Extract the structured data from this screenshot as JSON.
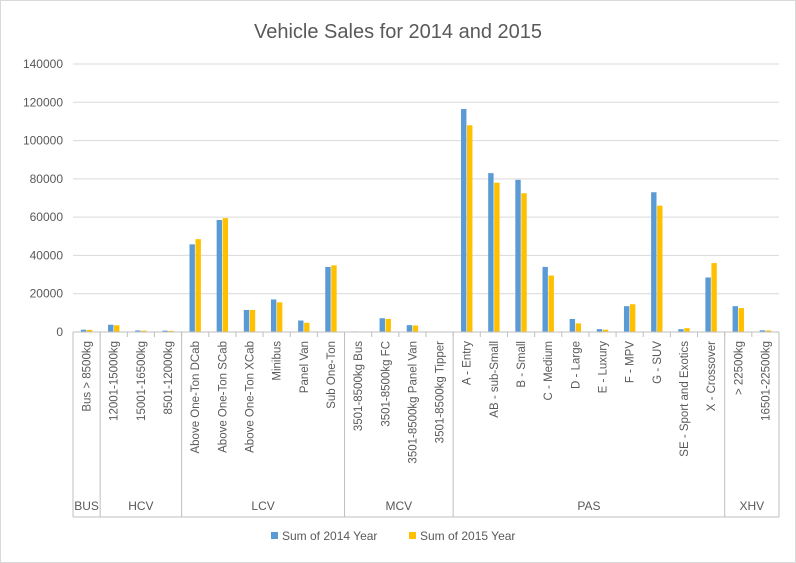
{
  "chart_data": {
    "type": "bar",
    "title": "Vehicle Sales for 2014 and 2015",
    "ylim": [
      0,
      140000
    ],
    "yticks": [
      0,
      20000,
      40000,
      60000,
      80000,
      100000,
      120000,
      140000
    ],
    "grid": true,
    "legend_position": "bottom",
    "groups": [
      {
        "name": "BUS",
        "count": 1
      },
      {
        "name": "HCV",
        "count": 3
      },
      {
        "name": "LCV",
        "count": 6
      },
      {
        "name": "MCV",
        "count": 4
      },
      {
        "name": "PAS",
        "count": 10
      },
      {
        "name": "XHV",
        "count": 2
      }
    ],
    "categories": [
      "Bus > 8500kg",
      "12001-15000kg",
      "15001-16500kg",
      "8501-12000kg",
      "Above One-Ton DCab",
      "Above One-Ton SCab",
      "Above One-Ton XCab",
      "Minibus",
      "Panel Van",
      "Sub One-Ton",
      "3501-8500kg Bus",
      "3501-8500kg FC",
      "3501-8500kg Panel Van",
      "3501-8500kg Tipper",
      "A - Entry",
      "AB - sub-Small",
      "B - Small",
      "C - Medium",
      "D - Large",
      "E - Luxury",
      "F - MPV",
      "G - SUV",
      "SE - Sport and Exotics",
      "X - Crossover",
      "> 22500kg",
      "16501-22500kg"
    ],
    "series": [
      {
        "name": "Sum of 2014 Year",
        "color": "#5b9bd5",
        "values": [
          1200,
          3800,
          800,
          700,
          45800,
          58500,
          11500,
          17000,
          6000,
          34000,
          300,
          7200,
          3600,
          200,
          116500,
          83000,
          79500,
          34000,
          6800,
          1500,
          13500,
          73000,
          1500,
          28500,
          13500,
          900
        ]
      },
      {
        "name": "Sum of 2015 Year",
        "color": "#ffc000",
        "values": [
          1100,
          3500,
          700,
          600,
          48500,
          59500,
          11500,
          15500,
          4800,
          34800,
          200,
          6800,
          3400,
          200,
          108000,
          78000,
          72500,
          29500,
          4500,
          1200,
          14500,
          66000,
          2000,
          36000,
          12500,
          800
        ]
      }
    ]
  }
}
